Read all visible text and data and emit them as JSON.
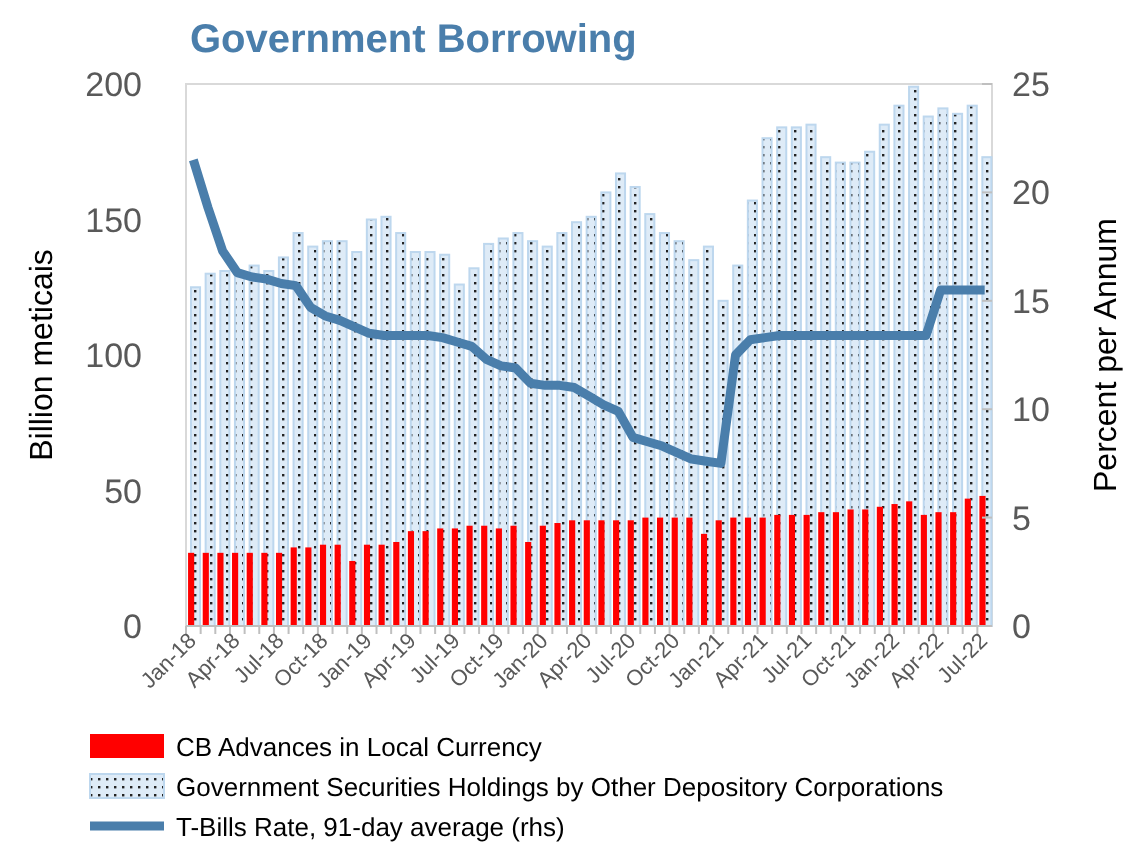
{
  "chart_data": {
    "type": "bar",
    "title": "Government Borrowing",
    "ylabel": "Billion meticais",
    "y2label": "Percent per Annum",
    "categories": [
      "Jan-18",
      null,
      null,
      "Apr-18",
      null,
      null,
      "Jul-18",
      null,
      null,
      "Oct-18",
      null,
      null,
      "Jan-19",
      null,
      null,
      "Apr-19",
      null,
      null,
      "Jul-19",
      null,
      null,
      "Oct-19",
      null,
      null,
      "Jan-20",
      null,
      null,
      "Apr-20",
      null,
      null,
      "Jul-20",
      null,
      null,
      "Oct-20",
      null,
      null,
      "Jan-21",
      null,
      null,
      "Apr-21",
      null,
      null,
      "Jul-21",
      null,
      null,
      "Oct-21",
      null,
      null,
      "Jan-22",
      null,
      null,
      "Apr-22",
      null,
      null,
      "Jul-22"
    ],
    "series": [
      {
        "name": "CB Advances in Local Currency",
        "color": "#ff0000",
        "values": [
          27,
          27,
          27,
          27,
          27,
          27,
          27,
          29,
          29,
          30,
          30,
          24,
          30,
          30,
          31,
          35,
          35,
          36,
          36,
          37,
          37,
          36,
          37,
          31,
          37,
          38,
          39,
          39,
          39,
          39,
          39,
          40,
          40,
          40,
          40,
          34,
          39,
          40,
          40,
          40,
          41,
          41,
          41,
          42,
          42,
          43,
          43,
          44,
          45,
          46,
          41,
          42,
          42,
          47,
          48
        ]
      },
      {
        "name": "Government Securities Holdings by Other Depository Corporations",
        "color": "#bdd7ee",
        "values": [
          125,
          130,
          131,
          129,
          133,
          131,
          136,
          145,
          140,
          142,
          142,
          138,
          150,
          151,
          145,
          138,
          138,
          137,
          126,
          132,
          141,
          143,
          145,
          142,
          140,
          145,
          149,
          151,
          160,
          167,
          162,
          152,
          145,
          142,
          135,
          140,
          120,
          133,
          157,
          180,
          184,
          184,
          185,
          173,
          171,
          171,
          175,
          185,
          192,
          199,
          188,
          191,
          189,
          192,
          173
        ]
      },
      {
        "name": "T-Bills Rate, 91-day average (rhs)",
        "type": "line",
        "axis": "y2",
        "color": "#4a7eab",
        "line_style": "solid",
        "values": [
          21.5,
          19.3,
          17.3,
          16.3,
          16.1,
          16.0,
          15.8,
          15.7,
          14.7,
          14.3,
          14.1,
          13.8,
          13.5,
          13.4,
          13.4,
          13.4,
          13.4,
          13.3,
          13.1,
          12.9,
          12.3,
          12.0,
          11.9,
          11.2,
          11.1,
          11.1,
          11.0,
          10.6,
          10.2,
          9.9,
          8.7,
          8.5,
          8.3,
          8.0,
          7.7,
          7.6,
          7.5,
          12.5,
          13.2,
          13.3,
          13.4,
          13.4,
          13.4,
          13.4,
          13.4,
          13.4,
          13.4,
          13.4,
          13.4,
          13.4,
          13.4,
          15.5,
          15.5,
          15.5,
          15.5
        ]
      }
    ],
    "ylim": [
      0,
      200
    ],
    "yticks": [
      0,
      50,
      100,
      150,
      200
    ],
    "y2lim": [
      0,
      25
    ],
    "y2ticks": [
      0,
      5,
      10,
      15,
      20,
      25
    ],
    "grid": false,
    "legend": "bottom"
  }
}
